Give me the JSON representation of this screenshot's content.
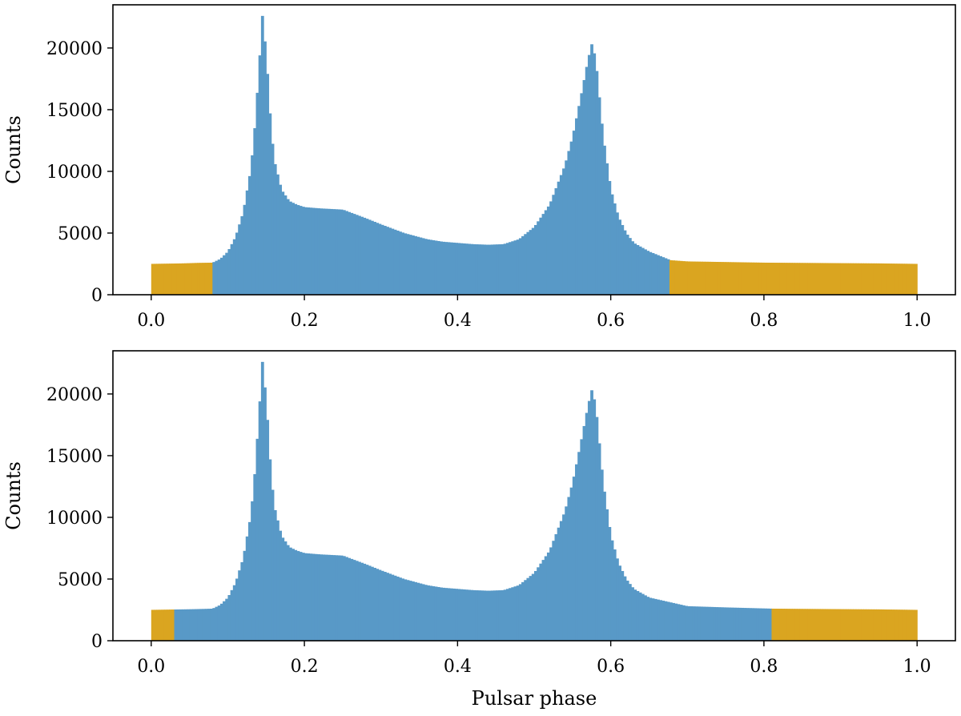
{
  "colors": {
    "on_pulse": "#5899c7",
    "off_pulse": "#daa520",
    "axes": "#000000",
    "background": "#ffffff"
  },
  "chart_data": [
    {
      "type": "bar",
      "title": "",
      "xlabel": "",
      "ylabel": "Counts",
      "xlim": [
        -0.05,
        1.05
      ],
      "ylim": [
        0,
        23500
      ],
      "xticks": [
        "0.0",
        "0.2",
        "0.4",
        "0.6",
        "0.8",
        "1.0"
      ],
      "yticks": [
        "0",
        "5000",
        "10000",
        "15000",
        "20000"
      ],
      "grid": false,
      "off_pulse_ranges": [
        [
          0.0,
          0.08
        ],
        [
          0.678,
          1.0
        ]
      ],
      "profile": {
        "x": [
          0.0,
          0.02,
          0.04,
          0.06,
          0.08,
          0.09,
          0.1,
          0.11,
          0.12,
          0.13,
          0.135,
          0.14,
          0.145,
          0.15,
          0.155,
          0.16,
          0.17,
          0.18,
          0.19,
          0.2,
          0.22,
          0.25,
          0.28,
          0.3,
          0.33,
          0.36,
          0.38,
          0.4,
          0.42,
          0.44,
          0.46,
          0.48,
          0.5,
          0.52,
          0.54,
          0.55,
          0.56,
          0.57,
          0.575,
          0.58,
          0.585,
          0.59,
          0.6,
          0.61,
          0.62,
          0.63,
          0.65,
          0.678,
          0.7,
          0.75,
          0.8,
          0.85,
          0.9,
          0.95,
          1.0
        ],
        "y": [
          2500,
          2520,
          2540,
          2580,
          2600,
          2900,
          3500,
          4700,
          6700,
          10200,
          13500,
          17800,
          22600,
          19500,
          14700,
          11000,
          8500,
          7600,
          7300,
          7100,
          7000,
          6900,
          6200,
          5700,
          5000,
          4500,
          4300,
          4200,
          4100,
          4050,
          4100,
          4500,
          5500,
          7300,
          10500,
          12800,
          15800,
          19000,
          20300,
          19200,
          16000,
          12800,
          8500,
          6300,
          5000,
          4200,
          3500,
          2800,
          2700,
          2650,
          2600,
          2580,
          2560,
          2540,
          2500
        ]
      }
    },
    {
      "type": "bar",
      "title": "",
      "xlabel": "Pulsar phase",
      "ylabel": "Counts",
      "xlim": [
        -0.05,
        1.05
      ],
      "ylim": [
        0,
        23500
      ],
      "xticks": [
        "0.0",
        "0.2",
        "0.4",
        "0.6",
        "0.8",
        "1.0"
      ],
      "yticks": [
        "0",
        "5000",
        "10000",
        "15000",
        "20000"
      ],
      "grid": false,
      "off_pulse_ranges": [
        [
          0.0,
          0.03
        ],
        [
          0.81,
          1.0
        ]
      ],
      "profile": {
        "x": [
          0.0,
          0.02,
          0.03,
          0.05,
          0.07,
          0.08,
          0.09,
          0.1,
          0.11,
          0.12,
          0.13,
          0.135,
          0.14,
          0.145,
          0.15,
          0.155,
          0.16,
          0.17,
          0.18,
          0.19,
          0.2,
          0.22,
          0.25,
          0.28,
          0.3,
          0.33,
          0.36,
          0.38,
          0.4,
          0.42,
          0.44,
          0.46,
          0.48,
          0.5,
          0.52,
          0.54,
          0.55,
          0.56,
          0.57,
          0.575,
          0.58,
          0.585,
          0.59,
          0.6,
          0.61,
          0.62,
          0.63,
          0.65,
          0.7,
          0.75,
          0.81,
          0.85,
          0.9,
          0.95,
          1.0
        ],
        "y": [
          2500,
          2520,
          2530,
          2550,
          2580,
          2600,
          2900,
          3500,
          4700,
          6700,
          10200,
          13500,
          17800,
          22600,
          19500,
          14700,
          11000,
          8500,
          7600,
          7300,
          7100,
          7000,
          6900,
          6200,
          5700,
          5000,
          4500,
          4300,
          4200,
          4100,
          4050,
          4100,
          4500,
          5500,
          7300,
          10500,
          12800,
          15800,
          19000,
          20300,
          19200,
          16000,
          12800,
          8500,
          6300,
          5000,
          4200,
          3500,
          2800,
          2700,
          2600,
          2580,
          2560,
          2540,
          2500
        ]
      }
    }
  ]
}
